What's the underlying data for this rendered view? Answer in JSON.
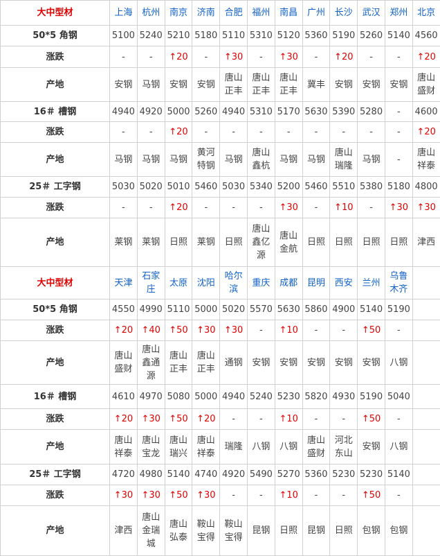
{
  "blocks": [
    {
      "header": {
        "label": "大中型材",
        "cities": [
          "上海",
          "杭州",
          "南京",
          "济南",
          "合肥",
          "福州",
          "南昌",
          "广州",
          "长沙",
          "武汉",
          "郑州",
          "北京"
        ]
      },
      "rows": [
        {
          "label": "50*5 角钢",
          "cells": [
            "5100",
            "5240",
            "5210",
            "5180",
            "5110",
            "5310",
            "5120",
            "5360",
            "5190",
            "5260",
            "5140",
            "4560"
          ]
        },
        {
          "label": "涨跌",
          "cells": [
            "-",
            "-",
            "↑20",
            "-",
            "↑30",
            "-",
            "↑30",
            "-",
            "↑20",
            "-",
            "-",
            "↑20"
          ]
        },
        {
          "label": "产地",
          "cells": [
            "安钢",
            "马钢",
            "安钢",
            "安钢",
            "唐山正丰",
            "唐山正丰",
            "唐山正丰",
            "冀丰",
            "安钢",
            "安钢",
            "安钢",
            "唐山盛财"
          ]
        },
        {
          "label": "16＃ 槽钢",
          "cells": [
            "4940",
            "4920",
            "5000",
            "5260",
            "4940",
            "5310",
            "5170",
            "5630",
            "5390",
            "5280",
            "-",
            "4600"
          ]
        },
        {
          "label": "涨跌",
          "cells": [
            "-",
            "-",
            "↑20",
            "-",
            "-",
            "-",
            "-",
            "-",
            "-",
            "-",
            "-",
            "↑20"
          ]
        },
        {
          "label": "产地",
          "cells": [
            "马钢",
            "马钢",
            "马钢",
            "黄河特钢",
            "马钢",
            "唐山鑫杭",
            "马钢",
            "马钢",
            "唐山瑞隆",
            "马钢",
            "-",
            "唐山祥泰"
          ]
        },
        {
          "label": "25＃ 工字钢",
          "cells": [
            "5030",
            "5020",
            "5010",
            "5460",
            "5030",
            "5340",
            "5200",
            "5460",
            "5510",
            "5380",
            "5180",
            "4800"
          ]
        },
        {
          "label": "涨跌",
          "cells": [
            "-",
            "-",
            "↑20",
            "-",
            "-",
            "-",
            "↑30",
            "-",
            "↑10",
            "-",
            "↑30",
            "↑30"
          ]
        },
        {
          "label": "产地",
          "cells": [
            "莱钢",
            "莱钢",
            "日照",
            "莱钢",
            "日照",
            "唐山鑫亿源",
            "唐山金航",
            "日照",
            "日照",
            "日照",
            "日照",
            "津西"
          ]
        }
      ]
    },
    {
      "header": {
        "label": "大中型材",
        "cities": [
          "天津",
          "石家庄",
          "太原",
          "沈阳",
          "哈尔滨",
          "重庆",
          "成都",
          "昆明",
          "西安",
          "兰州",
          "乌鲁木齐"
        ]
      },
      "rows": [
        {
          "label": "50*5 角钢",
          "cells": [
            "4550",
            "4990",
            "5110",
            "5000",
            "5020",
            "5570",
            "5630",
            "5860",
            "4900",
            "5140",
            "5190"
          ]
        },
        {
          "label": "涨跌",
          "cells": [
            "↑20",
            "↑40",
            "↑50",
            "↑30",
            "↑30",
            "-",
            "↑10",
            "-",
            "-",
            "↑50",
            "-"
          ]
        },
        {
          "label": "产地",
          "cells": [
            "唐山盛财",
            "唐山鑫通源",
            "唐山正丰",
            "唐山正丰",
            "通钢",
            "安钢",
            "安钢",
            "安钢",
            "安钢",
            "安钢",
            "八钢"
          ]
        },
        {
          "label": "16＃ 槽钢",
          "cells": [
            "4610",
            "4970",
            "5080",
            "5000",
            "4940",
            "5240",
            "5230",
            "5820",
            "4930",
            "5190",
            "5040"
          ]
        },
        {
          "label": "涨跌",
          "cells": [
            "↑20",
            "↑30",
            "↑50",
            "↑20",
            "-",
            "-",
            "↑10",
            "-",
            "-",
            "↑50",
            "-"
          ]
        },
        {
          "label": "产地",
          "cells": [
            "唐山祥泰",
            "唐山宝龙",
            "唐山瑞兴",
            "唐山祥泰",
            "瑞隆",
            "八钢",
            "八钢",
            "唐山盛财",
            "河北东山",
            "安钢",
            "八钢"
          ]
        },
        {
          "label": "25＃ 工字钢",
          "cells": [
            "4720",
            "4980",
            "5140",
            "4740",
            "4920",
            "5490",
            "5270",
            "5360",
            "5230",
            "5230",
            "5140"
          ]
        },
        {
          "label": "涨跌",
          "cells": [
            "↑30",
            "↑30",
            "↑50",
            "↑30",
            "-",
            "-",
            "↑10",
            "-",
            "-",
            "↑50",
            "-"
          ]
        },
        {
          "label": "产地",
          "cells": [
            "津西",
            "唐山金瑞城",
            "唐山弘泰",
            "鞍山宝得",
            "鞍山宝得",
            "昆钢",
            "日照",
            "昆钢",
            "日照",
            "包钢",
            "包钢"
          ]
        }
      ]
    }
  ]
}
